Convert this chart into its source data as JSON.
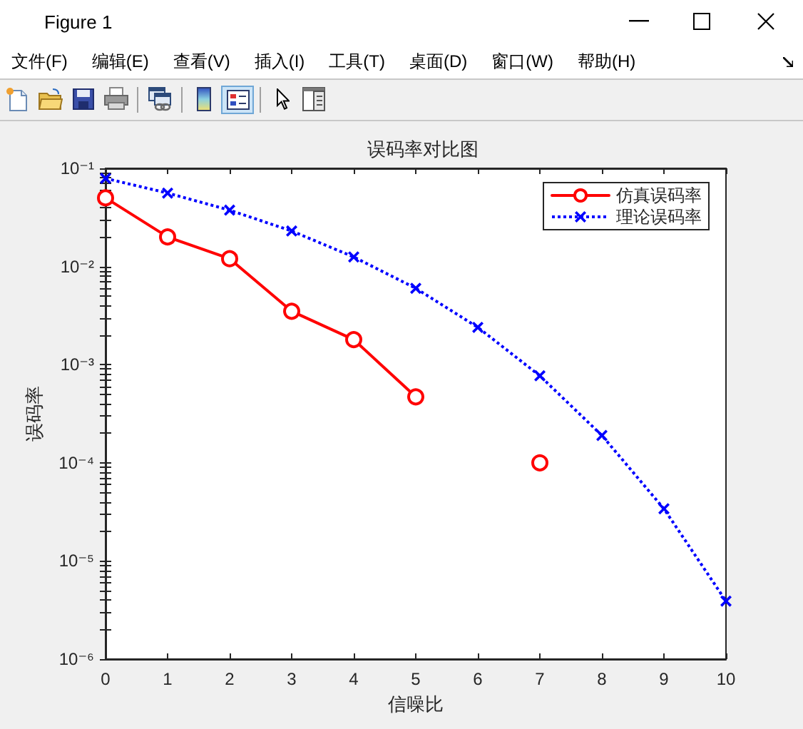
{
  "chart_data": {
    "type": "line",
    "title": "误码率对比图",
    "xlabel": "信噪比",
    "ylabel": "误码率",
    "x": [
      0,
      1,
      2,
      3,
      4,
      5,
      6,
      7,
      8,
      9,
      10
    ],
    "series": [
      {
        "name": "仿真误码率",
        "color": "#ff0000",
        "marker": "circle",
        "line_style": "solid",
        "values": [
          0.05,
          0.02,
          0.012,
          0.0035,
          0.0018,
          0.00047,
          null,
          0.0001,
          null,
          null,
          null
        ]
      },
      {
        "name": "理论误码率",
        "color": "#0000ff",
        "marker": "cross",
        "line_style": "dotted",
        "values": [
          0.079,
          0.056,
          0.0375,
          0.023,
          0.0125,
          0.006,
          0.0024,
          0.00077,
          0.00019,
          3.4e-05,
          3.9e-06
        ]
      }
    ],
    "xlim": [
      0,
      10
    ],
    "xticks": [
      0,
      1,
      2,
      3,
      4,
      5,
      6,
      7,
      8,
      9,
      10
    ],
    "ylim": [
      1e-06,
      0.1
    ],
    "yticks": [
      {
        "value": 1e-06,
        "label": "10⁻⁶"
      },
      {
        "value": 2e-06,
        "label": null
      },
      {
        "value": 3e-06,
        "label": null
      },
      {
        "value": 4e-06,
        "label": null
      },
      {
        "value": 5e-06,
        "label": null
      },
      {
        "value": 6e-06,
        "label": null
      },
      {
        "value": 7e-06,
        "label": null
      },
      {
        "value": 8e-06,
        "label": null
      },
      {
        "value": 9e-06,
        "label": null
      },
      {
        "value": 1e-05,
        "label": "10⁻⁵"
      },
      {
        "value": 2e-05,
        "label": null
      },
      {
        "value": 3e-05,
        "label": null
      },
      {
        "value": 4e-05,
        "label": null
      },
      {
        "value": 5e-05,
        "label": null
      },
      {
        "value": 6e-05,
        "label": null
      },
      {
        "value": 7e-05,
        "label": null
      },
      {
        "value": 8e-05,
        "label": null
      },
      {
        "value": 9e-05,
        "label": null
      },
      {
        "value": 0.0001,
        "label": "10⁻⁴"
      },
      {
        "value": 0.0002,
        "label": null
      },
      {
        "value": 0.0003,
        "label": null
      },
      {
        "value": 0.0004,
        "label": null
      },
      {
        "value": 0.0005,
        "label": null
      },
      {
        "value": 0.0006,
        "label": null
      },
      {
        "value": 0.0007,
        "label": null
      },
      {
        "value": 0.0008,
        "label": null
      },
      {
        "value": 0.0009,
        "label": null
      },
      {
        "value": 0.001,
        "label": "10⁻³"
      },
      {
        "value": 0.002,
        "label": null
      },
      {
        "value": 0.003,
        "label": null
      },
      {
        "value": 0.004,
        "label": null
      },
      {
        "value": 0.005,
        "label": null
      },
      {
        "value": 0.006,
        "label": null
      },
      {
        "value": 0.007,
        "label": null
      },
      {
        "value": 0.008,
        "label": null
      },
      {
        "value": 0.009,
        "label": null
      },
      {
        "value": 0.01,
        "label": "10⁻²"
      },
      {
        "value": 0.02,
        "label": null
      },
      {
        "value": 0.03,
        "label": null
      },
      {
        "value": 0.04,
        "label": null
      },
      {
        "value": 0.05,
        "label": null
      },
      {
        "value": 0.06,
        "label": null
      },
      {
        "value": 0.07,
        "label": null
      },
      {
        "value": 0.08,
        "label": null
      },
      {
        "value": 0.09,
        "label": null
      },
      {
        "value": 0.1,
        "label": "10⁻¹"
      }
    ],
    "log": "y",
    "legend": "top right",
    "annotations": [
      "Figure 1",
      "文件(F)",
      "编辑(E)",
      "查看(V)",
      "插入(I)",
      "工具(T)",
      "桌面(D)",
      "窗口(W)",
      "帮助(H)"
    ]
  }
}
